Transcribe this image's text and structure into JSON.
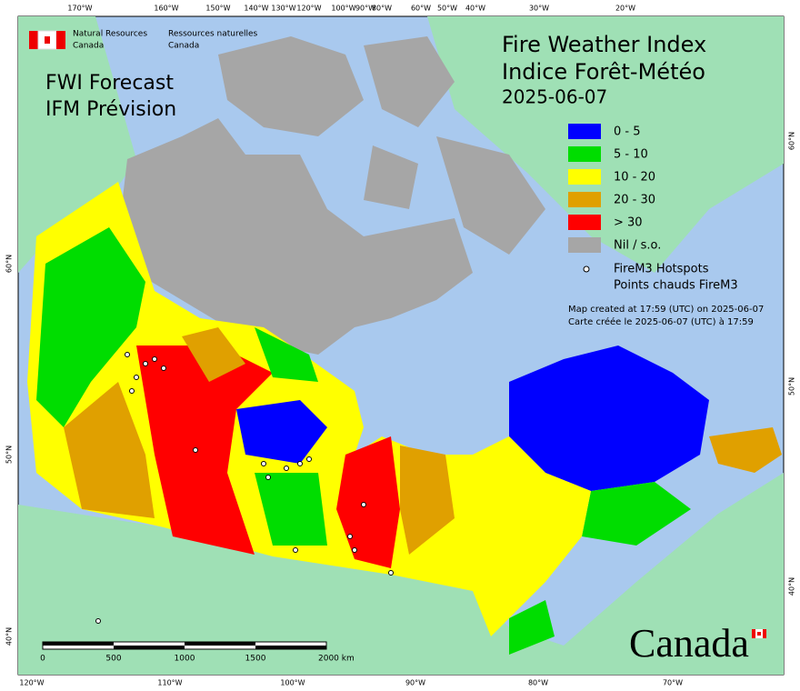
{
  "agency": {
    "en_line1": "Natural Resources",
    "en_line2": "Canada",
    "fr_line1": "Ressources naturelles",
    "fr_line2": "Canada"
  },
  "product": {
    "en": "FWI Forecast",
    "fr": "IFM Prévision"
  },
  "title": {
    "en": "Fire Weather Index",
    "fr": "Indice Forêt-Météo",
    "date": "2025-06-07"
  },
  "legend": {
    "items": [
      {
        "label": "0 - 5",
        "color": "#0000ff"
      },
      {
        "label": "5 - 10",
        "color": "#00dd00"
      },
      {
        "label": "10 - 20",
        "color": "#ffff00"
      },
      {
        "label": "20 - 30",
        "color": "#e0a000"
      },
      {
        "label": "> 30",
        "color": "#ff0000"
      },
      {
        "label": "Nil / s.o.",
        "color": "#a6a6a6"
      }
    ],
    "hotspots_en": "FireM3 Hotspots",
    "hotspots_fr": "Points chauds FireM3"
  },
  "notes": [
    "Map created at 17:59 (UTC) on 2025-06-07",
    "Carte créée le 2025-06-07 (UTC) à 17:59"
  ],
  "graticule": {
    "top": [
      "170°W",
      "160°W",
      "150°W",
      "140°W",
      "130°W",
      "120°W",
      "100°W",
      "90°W",
      "80°W",
      "60°W",
      "50°W",
      "40°W",
      "30°W",
      "20°W"
    ],
    "bottom": [
      "120°W",
      "110°W",
      "100°W",
      "90°W",
      "80°W",
      "70°W"
    ],
    "left": [
      "60°N",
      "50°N",
      "40°N"
    ],
    "right": [
      "60°N",
      "50°N",
      "40°N"
    ]
  },
  "scale_bar": {
    "labels": [
      "0",
      "500",
      "1000",
      "1500",
      "2000 km"
    ]
  },
  "wordmark": "Canada"
}
